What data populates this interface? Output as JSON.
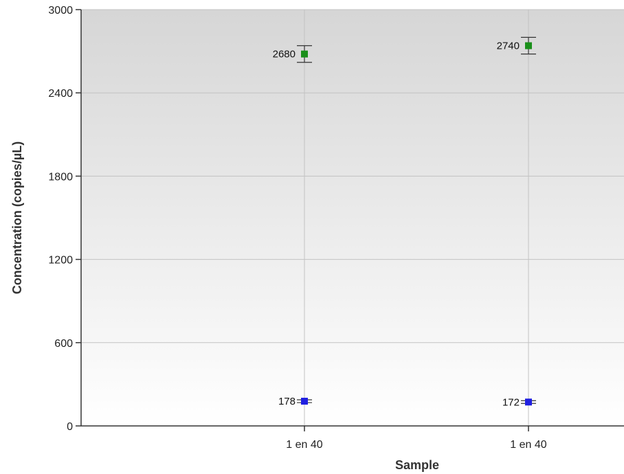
{
  "chart_data": {
    "type": "scatter",
    "title": "",
    "xlabel": "Sample",
    "ylabel": "Concentration (copies/µL)",
    "ylim": [
      0,
      3000
    ],
    "yticks": [
      0,
      600,
      1200,
      1800,
      2400,
      3000
    ],
    "categories": [
      "1 en 40",
      "1 en 40"
    ],
    "grid": true,
    "legend": "none",
    "series": [
      {
        "color": "#1a8f1a",
        "values": [
          2680,
          2740
        ],
        "labels": [
          "2680",
          "2740"
        ],
        "error_low": [
          2620,
          2680
        ],
        "error_high": [
          2740,
          2800
        ]
      },
      {
        "color": "#1f1fe0",
        "values": [
          178,
          172
        ],
        "labels": [
          "178",
          "172"
        ],
        "error_low": [
          168,
          162
        ],
        "error_high": [
          188,
          182
        ]
      }
    ]
  }
}
